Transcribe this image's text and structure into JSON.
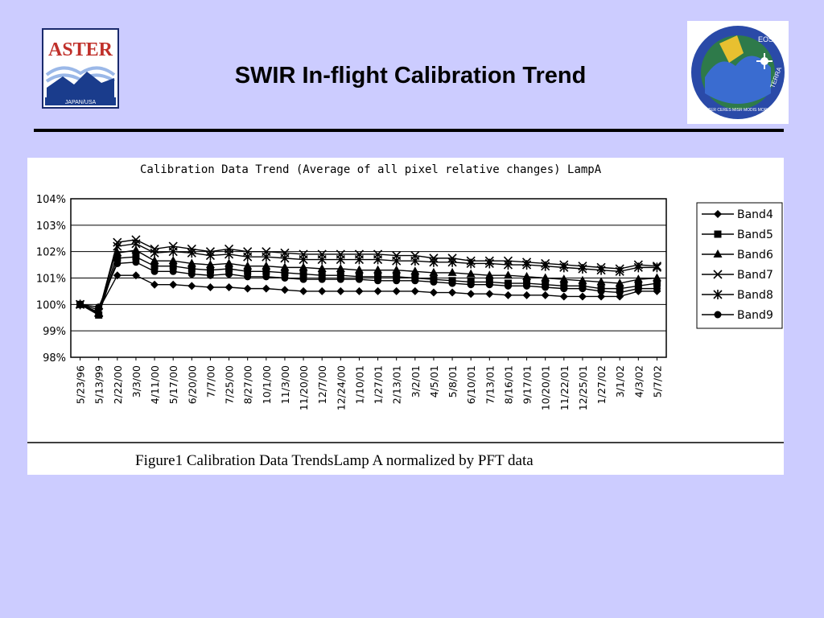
{
  "slide": {
    "title": "SWIR In-flight Calibration Trend",
    "background": "#ccccff"
  },
  "logos": {
    "aster": {
      "text": "ASTER",
      "subtext": "JAPAN/USA",
      "color": "#c0302a",
      "accent": "#1a3c8c"
    },
    "eos": {
      "text_top": "EOS",
      "text_right": "TERRA",
      "ring_text": "ASTER CERES MISR MODIS MOPITT"
    }
  },
  "figure": {
    "caption": "Figure1 Calibration Data TrendsLamp A normalized by PFT data"
  },
  "chart_data": {
    "type": "line",
    "title": "Calibration Data Trend  (Average of all pixel relative changes) LampA",
    "xlabel": "",
    "ylabel": "",
    "ylim": [
      98,
      104
    ],
    "y_ticks": [
      98,
      99,
      100,
      101,
      102,
      103,
      104
    ],
    "y_tick_labels": [
      "98%",
      "99%",
      "100%",
      "101%",
      "102%",
      "103%",
      "104%"
    ],
    "grid": true,
    "legend": "right",
    "categories": [
      "5/23/96",
      "5/13/99",
      "2/22/00",
      "3/3/00",
      "4/11/00",
      "5/17/00",
      "6/20/00",
      "7/7/00",
      "7/25/00",
      "8/27/00",
      "10/1/00",
      "11/3/00",
      "11/20/00",
      "12/7/00",
      "12/24/00",
      "1/10/01",
      "1/27/01",
      "2/13/01",
      "3/2/01",
      "4/5/01",
      "5/8/01",
      "6/10/01",
      "7/13/01",
      "8/16/01",
      "9/17/01",
      "10/20/01",
      "11/22/01",
      "12/25/01",
      "1/27/02",
      "3/1/02",
      "4/3/02",
      "5/7/02"
    ],
    "series": [
      {
        "name": "Band4",
        "marker": "diamond",
        "values": [
          100.0,
          99.8,
          101.1,
          101.1,
          100.75,
          100.75,
          100.7,
          100.65,
          100.65,
          100.6,
          100.6,
          100.55,
          100.5,
          100.5,
          100.5,
          100.5,
          100.5,
          100.5,
          100.5,
          100.45,
          100.45,
          100.4,
          100.4,
          100.35,
          100.35,
          100.35,
          100.3,
          100.3,
          100.3,
          100.3,
          100.5,
          100.5
        ]
      },
      {
        "name": "Band5",
        "marker": "square",
        "values": [
          100.0,
          99.6,
          101.75,
          101.8,
          101.45,
          101.45,
          101.35,
          101.3,
          101.35,
          101.25,
          101.25,
          101.2,
          101.15,
          101.1,
          101.1,
          101.05,
          101.05,
          101.05,
          101.0,
          100.95,
          100.9,
          100.85,
          100.85,
          100.8,
          100.8,
          100.75,
          100.7,
          100.7,
          100.6,
          100.6,
          100.7,
          100.8
        ]
      },
      {
        "name": "Band6",
        "marker": "triangle",
        "values": [
          100.0,
          99.65,
          101.95,
          102.05,
          101.65,
          101.65,
          101.55,
          101.5,
          101.55,
          101.45,
          101.45,
          101.4,
          101.4,
          101.35,
          101.35,
          101.3,
          101.3,
          101.3,
          101.25,
          101.2,
          101.2,
          101.15,
          101.1,
          101.1,
          101.05,
          101.0,
          100.95,
          100.9,
          100.85,
          100.8,
          100.95,
          101.0
        ]
      },
      {
        "name": "Band7",
        "marker": "x",
        "values": [
          100.0,
          99.7,
          102.35,
          102.45,
          102.1,
          102.2,
          102.1,
          102.0,
          102.1,
          102.0,
          102.0,
          101.95,
          101.9,
          101.9,
          101.9,
          101.9,
          101.9,
          101.85,
          101.85,
          101.75,
          101.75,
          101.65,
          101.65,
          101.65,
          101.6,
          101.55,
          101.5,
          101.45,
          101.4,
          101.35,
          101.5,
          101.45
        ]
      },
      {
        "name": "Band8",
        "marker": "star",
        "values": [
          100.0,
          99.7,
          102.2,
          102.3,
          101.95,
          102.0,
          101.95,
          101.85,
          101.9,
          101.8,
          101.8,
          101.75,
          101.7,
          101.7,
          101.7,
          101.7,
          101.7,
          101.65,
          101.65,
          101.6,
          101.6,
          101.55,
          101.55,
          101.5,
          101.5,
          101.45,
          101.4,
          101.35,
          101.3,
          101.25,
          101.4,
          101.4
        ]
      },
      {
        "name": "Band9",
        "marker": "circle",
        "values": [
          100.0,
          99.9,
          101.55,
          101.6,
          101.25,
          101.25,
          101.15,
          101.1,
          101.15,
          101.05,
          101.05,
          101.0,
          100.95,
          100.95,
          100.95,
          100.95,
          100.9,
          100.9,
          100.9,
          100.85,
          100.8,
          100.75,
          100.75,
          100.7,
          100.7,
          100.65,
          100.6,
          100.6,
          100.5,
          100.45,
          100.6,
          100.6
        ]
      }
    ]
  }
}
